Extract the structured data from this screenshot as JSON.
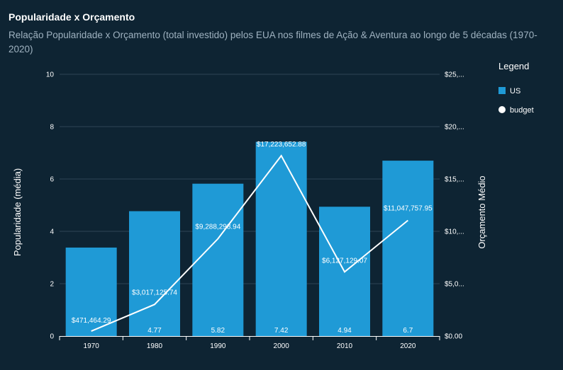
{
  "chart_data": {
    "type": "bar",
    "title": "Popularidade x Orçamento",
    "subtitle": "Relação Popularidade x Orçamento (total investido) pelos EUA nos filmes de Ação & Aventura ao longo de 5 décadas (1970-2020)",
    "categories": [
      "1970",
      "1980",
      "1990",
      "2000",
      "2010",
      "2020"
    ],
    "series": [
      {
        "name": "US",
        "type": "bar",
        "axis": "left",
        "color": "#1f9ad6",
        "values": [
          3.38,
          4.77,
          5.82,
          7.42,
          4.94,
          6.7
        ],
        "labels": [
          "",
          "4.77",
          "5.82",
          "7.42",
          "4.94",
          "6.7"
        ]
      },
      {
        "name": "budget",
        "type": "line",
        "axis": "right",
        "color": "#ffffff",
        "values": [
          471464.29,
          3017125.74,
          9288298.94,
          17223652.88,
          6127129.07,
          11047757.95
        ],
        "labels": [
          "$471,464.29",
          "$3,017,125.74",
          "$9,288,298.94",
          "$17,223,652.88",
          "$6,127,129.07",
          "$11,047,757.95"
        ]
      }
    ],
    "ylabel": "Popularidade (média)",
    "y2label": "Orçamento Médio",
    "ylim": [
      0,
      10
    ],
    "y2lim": [
      0,
      25000000
    ],
    "yticks": [
      "0",
      "2",
      "4",
      "6",
      "8",
      "10"
    ],
    "y2ticks": [
      "$0.00",
      "$5,0...",
      "$10,...",
      "$15,...",
      "$20,...",
      "$25,..."
    ],
    "grid": true,
    "legend": {
      "title": "Legend",
      "position": "right",
      "items": [
        "US",
        "budget"
      ]
    }
  }
}
